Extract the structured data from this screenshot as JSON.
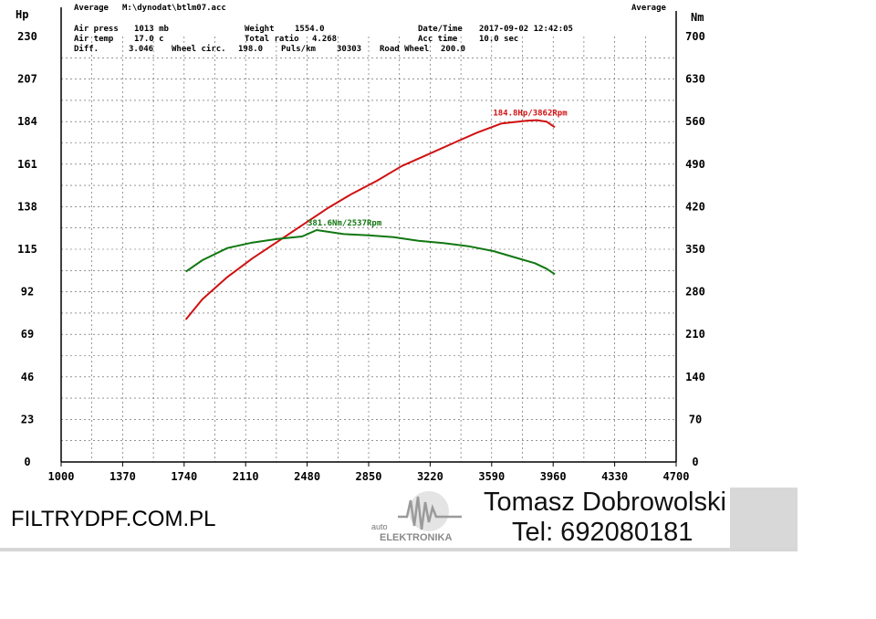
{
  "header": {
    "left_average": "Average",
    "file": "M:\\dynodat\\btlm07.acc",
    "right_average": "Average",
    "air_press_label": "Air press",
    "air_press_value": "1013 mb",
    "weight_label": "Weight",
    "weight_value": "1554.0",
    "datetime_label": "Date/Time",
    "datetime_value": "2017-09-02 12:42:05",
    "air_temp_label": "Air temp",
    "air_temp_value": "17.0 c",
    "total_ratio_label": "Total ratio",
    "total_ratio_value": "4.268",
    "acc_time_label": "Acc time",
    "acc_time_value": "10.0 sec",
    "diff_label": "Diff.",
    "diff_value": "3.046",
    "wheel_circ_label": "Wheel circ.",
    "wheel_circ_value": "198.0",
    "puls_label": "Puls/km",
    "puls_value": "30303",
    "road_wheel_label": "Road Wheel",
    "road_wheel_value": "200.0"
  },
  "chart_data": {
    "type": "line",
    "xlabel": "",
    "y_left_unit": "Hp",
    "y_right_unit": "Nm",
    "x_ticks": [
      1000,
      1370,
      1740,
      2110,
      2480,
      2850,
      3220,
      3590,
      3960,
      4330,
      4700
    ],
    "xlim": [
      1000,
      4700
    ],
    "y_left_ticks": [
      0,
      23,
      46,
      69,
      92,
      115,
      138,
      161,
      184,
      207,
      230
    ],
    "y_left_lim": [
      0,
      230
    ],
    "y_right_ticks": [
      0,
      70,
      140,
      210,
      280,
      350,
      420,
      490,
      560,
      630,
      700
    ],
    "y_right_lim": [
      0,
      700
    ],
    "grid": true,
    "series": [
      {
        "axis": "left",
        "color": "#d01010",
        "x": [
          1750,
          1850,
          2000,
          2150,
          2300,
          2450,
          2600,
          2750,
          2900,
          3050,
          3200,
          3350,
          3500,
          3650,
          3800,
          3862,
          3920,
          3970
        ],
        "values": [
          77,
          88,
          100,
          110,
          119,
          128,
          137,
          145,
          152,
          160,
          166,
          172,
          178,
          183,
          184.5,
          184.8,
          184,
          181
        ],
        "annotation": "184.8Hp/3862Rpm"
      },
      {
        "axis": "right",
        "color": "#117711",
        "x": [
          1750,
          1850,
          2000,
          2150,
          2300,
          2450,
          2537,
          2700,
          2850,
          3000,
          3150,
          3300,
          3450,
          3600,
          3750,
          3850,
          3920,
          3970
        ],
        "values": [
          313,
          332,
          352,
          361,
          367,
          371,
          381.6,
          375,
          373,
          370,
          364,
          360,
          355,
          347,
          335,
          327,
          318,
          309
        ],
        "annotation": "381.6Nm/2537Rpm"
      }
    ]
  },
  "footer": {
    "website": "FILTRYDPF.COM.PL",
    "name": "Tomasz Dobrowolski",
    "phone": "Tel: 692080181",
    "logo_small": "auto",
    "logo_big": "ELEKTRONIKA"
  }
}
